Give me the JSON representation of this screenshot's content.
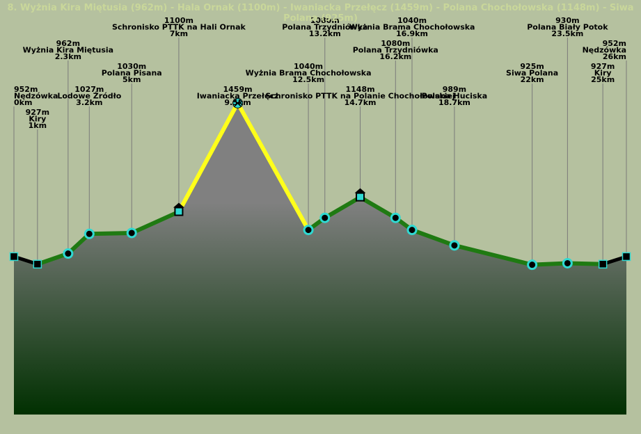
{
  "title": "8. Wyżnia Kira Miętusia (962m) - Hala Ornak (1100m) - Iwaniacka Przełęcz (1459m) - Polana Chochołowska (1148m) - Siwa Polana (925m)",
  "colors": {
    "background": "#b5c19f",
    "route_easy": "#1f7a12",
    "route_hard": "#ffff1a",
    "marker_fill": "#2fd9d2",
    "area_top": "#808080",
    "area_bottom": "#013001"
  },
  "chart_data": {
    "type": "area",
    "title": "",
    "xlabel": "",
    "ylabel": "",
    "x_unit": "km",
    "y_unit": "m",
    "xlim": [
      0,
      26
    ],
    "ylim": [
      430,
      1800
    ],
    "series": [
      {
        "values": [
          {
            "x": 0,
            "y": 952,
            "name": "Nędzówka",
            "marker": "square",
            "segment": "dark"
          },
          {
            "x": 1,
            "y": 927,
            "name": "Kiry",
            "marker": "square",
            "segment": "green"
          },
          {
            "x": 2.3,
            "y": 962,
            "name": "Wyżnia Kira Miętusia",
            "marker": "circle",
            "segment": "green"
          },
          {
            "x": 3.2,
            "y": 1027,
            "name": "Lodowe Źródło",
            "marker": "circle",
            "segment": "green"
          },
          {
            "x": 5,
            "y": 1030,
            "name": "Polana Pisana",
            "marker": "circle",
            "segment": "green"
          },
          {
            "x": 7,
            "y": 1100,
            "name": "Schronisko PTTK na Hali Ornak",
            "marker": "hut",
            "segment": "yellow"
          },
          {
            "x": 9.5,
            "y": 1459,
            "name": "Iwaniacka Przełęcz",
            "marker": "pass",
            "segment": "yellow"
          },
          {
            "x": 12.5,
            "y": 1040,
            "name": "Wyżnia Brama Chochołowska",
            "marker": "circle",
            "segment": "green"
          },
          {
            "x": 13.2,
            "y": 1080,
            "name": "Polana Trzydniówka",
            "marker": "circle",
            "segment": "green"
          },
          {
            "x": 14.7,
            "y": 1148,
            "name": "Schronisko PTTK na Polanie Chochołowskiej",
            "marker": "hut",
            "segment": "green"
          },
          {
            "x": 16.2,
            "y": 1080,
            "name": "Polana Trzydniówka",
            "marker": "circle",
            "segment": "green"
          },
          {
            "x": 16.9,
            "y": 1040,
            "name": "Wyżnia Brama Chochołowska",
            "marker": "circle",
            "segment": "green"
          },
          {
            "x": 18.7,
            "y": 989,
            "name": "Polana Huciska",
            "marker": "circle",
            "segment": "green"
          },
          {
            "x": 22,
            "y": 925,
            "name": "Siwa Polana",
            "marker": "circle",
            "segment": "green"
          },
          {
            "x": 23.5,
            "y": 930,
            "name": "Polana Biały Potok",
            "marker": "circle",
            "segment": "green"
          },
          {
            "x": 25,
            "y": 927,
            "name": "Kiry",
            "marker": "square",
            "segment": "dark"
          },
          {
            "x": 26,
            "y": 952,
            "name": "Nędzówka",
            "marker": "square",
            "segment": null
          }
        ]
      }
    ],
    "label_tiers": [
      3,
      4,
      1,
      3,
      2,
      0,
      3,
      2,
      0,
      3,
      1,
      0,
      3,
      2,
      0,
      2,
      1
    ]
  }
}
